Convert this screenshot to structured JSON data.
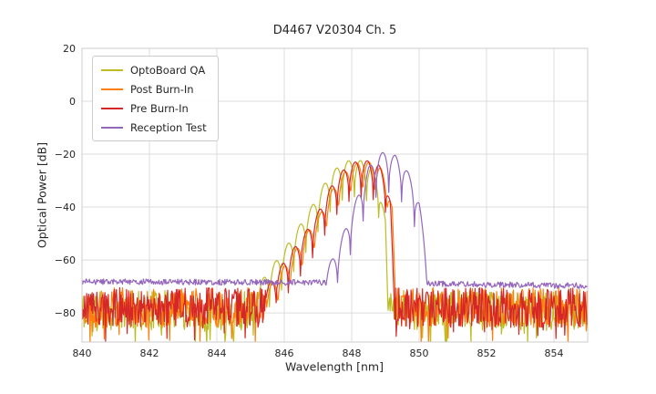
{
  "chart_data": {
    "type": "line",
    "title": "D4467 V20304 Ch. 5",
    "xlabel": "Wavelength [nm]",
    "ylabel": "Optical Power [dB]",
    "xlim": [
      840,
      855
    ],
    "ylim": [
      -91,
      20
    ],
    "xticks": [
      840,
      842,
      844,
      846,
      848,
      850,
      852,
      854
    ],
    "yticks": [
      20,
      0,
      -20,
      -40,
      -60,
      -80
    ],
    "grid": true,
    "legend_position": "upper left",
    "series": [
      {
        "name": "OptoBoard QA",
        "color": "#bcbd22",
        "seed": 11,
        "noise_floor_points": [
          [
            840,
            -79
          ],
          [
            855,
            -79
          ]
        ],
        "noise_amp_db": 7.5,
        "spike_prob": 0.07,
        "mode_spacing_nm": 0.36,
        "lobe_depth_db": 14,
        "envelope": [
          [
            845.2,
            -70
          ],
          [
            845.6,
            -63
          ],
          [
            846.0,
            -56
          ],
          [
            846.4,
            -48
          ],
          [
            846.8,
            -40
          ],
          [
            847.1,
            -33
          ],
          [
            847.4,
            -27
          ],
          [
            847.7,
            -23.5
          ],
          [
            848.0,
            -22
          ],
          [
            848.3,
            -22.5
          ],
          [
            848.6,
            -25
          ],
          [
            848.8,
            -30
          ],
          [
            849.0,
            -45
          ],
          [
            849.08,
            -78
          ]
        ]
      },
      {
        "name": "Post Burn-In",
        "color": "#ff7f0e",
        "seed": 22,
        "noise_floor_points": [
          [
            840,
            -78
          ],
          [
            855,
            -78
          ]
        ],
        "noise_amp_db": 7.5,
        "spike_prob": 0.07,
        "mode_spacing_nm": 0.36,
        "lobe_depth_db": 14,
        "envelope": [
          [
            845.45,
            -72
          ],
          [
            845.85,
            -65
          ],
          [
            846.25,
            -58
          ],
          [
            846.65,
            -50
          ],
          [
            847.05,
            -43
          ],
          [
            847.35,
            -35
          ],
          [
            847.65,
            -29
          ],
          [
            847.95,
            -24.5
          ],
          [
            848.25,
            -23
          ],
          [
            848.55,
            -23
          ],
          [
            848.85,
            -25
          ],
          [
            849.05,
            -30
          ],
          [
            849.2,
            -40
          ],
          [
            849.32,
            -80
          ]
        ]
      },
      {
        "name": "Pre Burn-In",
        "color": "#d62728",
        "seed": 33,
        "noise_floor_points": [
          [
            840,
            -78
          ],
          [
            855,
            -78
          ]
        ],
        "noise_amp_db": 7.5,
        "spike_prob": 0.07,
        "mode_spacing_nm": 0.36,
        "lobe_depth_db": 14,
        "envelope": [
          [
            845.4,
            -72
          ],
          [
            845.8,
            -64
          ],
          [
            846.2,
            -57
          ],
          [
            846.6,
            -50
          ],
          [
            847.0,
            -42
          ],
          [
            847.3,
            -34
          ],
          [
            847.6,
            -28
          ],
          [
            847.9,
            -24
          ],
          [
            848.2,
            -22.5
          ],
          [
            848.5,
            -22.5
          ],
          [
            848.8,
            -24
          ],
          [
            849.0,
            -28
          ],
          [
            849.15,
            -38
          ],
          [
            849.28,
            -80
          ]
        ]
      },
      {
        "name": "Reception Test",
        "color": "#9467bd",
        "seed": 44,
        "noise_floor_points": [
          [
            840,
            -68.2
          ],
          [
            847.3,
            -68.5
          ],
          [
            850.4,
            -69.0
          ],
          [
            855,
            -69.8
          ]
        ],
        "noise_amp_db": 1.1,
        "spike_prob": 0,
        "mode_spacing_nm": 0.38,
        "lobe_depth_db": 15,
        "envelope": [
          [
            847.2,
            -65
          ],
          [
            847.6,
            -55
          ],
          [
            847.9,
            -45
          ],
          [
            848.2,
            -35
          ],
          [
            848.5,
            -25
          ],
          [
            848.8,
            -20
          ],
          [
            849.0,
            -19
          ],
          [
            849.3,
            -20.5
          ],
          [
            849.55,
            -24
          ],
          [
            849.8,
            -30
          ],
          [
            850.0,
            -38
          ],
          [
            850.15,
            -52
          ],
          [
            850.32,
            -68
          ]
        ]
      }
    ]
  }
}
